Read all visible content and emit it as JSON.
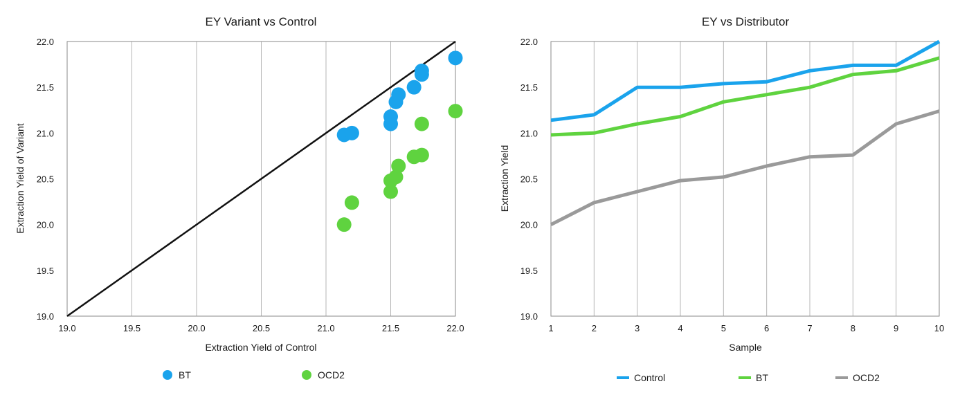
{
  "chart_data": [
    {
      "type": "scatter",
      "title": "EY Variant vs Control",
      "xlabel": "Extraction Yield of Control",
      "ylabel": "Extraction Yield  of Variant",
      "xlim": [
        19.0,
        22.0
      ],
      "ylim": [
        19.0,
        22.0
      ],
      "x_ticks": [
        "19.0",
        "19.5",
        "20.0",
        "20.5",
        "21.0",
        "21.5",
        "22.0"
      ],
      "y_ticks": [
        "19.0",
        "19.5",
        "20.0",
        "20.5",
        "21.0",
        "21.5",
        "22.0"
      ],
      "grid": "vertical",
      "legend_position": "bottom",
      "reference_line": {
        "from": [
          19.0,
          19.0
        ],
        "to": [
          22.0,
          22.0
        ],
        "color": "#111111"
      },
      "series": [
        {
          "name": "BT",
          "color": "#1aa3ec",
          "points": [
            [
              21.14,
              20.98
            ],
            [
              21.2,
              21.0
            ],
            [
              21.5,
              21.1
            ],
            [
              21.5,
              21.18
            ],
            [
              21.54,
              21.34
            ],
            [
              21.56,
              21.42
            ],
            [
              21.68,
              21.5
            ],
            [
              21.74,
              21.64
            ],
            [
              21.74,
              21.68
            ],
            [
              22.0,
              21.82
            ]
          ]
        },
        {
          "name": "OCD2",
          "color": "#5fd33f",
          "points": [
            [
              21.14,
              20.0
            ],
            [
              21.2,
              20.24
            ],
            [
              21.5,
              20.36
            ],
            [
              21.5,
              20.48
            ],
            [
              21.54,
              20.52
            ],
            [
              21.56,
              20.64
            ],
            [
              21.68,
              20.74
            ],
            [
              21.74,
              20.76
            ],
            [
              21.74,
              21.1
            ],
            [
              22.0,
              21.24
            ]
          ]
        }
      ]
    },
    {
      "type": "line",
      "title": "EY vs Distributor",
      "xlabel": "Sample",
      "ylabel": "Extraction Yield",
      "categories": [
        "1",
        "2",
        "3",
        "4",
        "5",
        "6",
        "7",
        "8",
        "9",
        "10"
      ],
      "ylim": [
        19.0,
        22.0
      ],
      "y_ticks": [
        "19.0",
        "19.5",
        "20.0",
        "20.5",
        "21.0",
        "21.5",
        "22.0"
      ],
      "grid": "vertical",
      "legend_position": "bottom",
      "series": [
        {
          "name": "Control",
          "color": "#1aa3ec",
          "values": [
            21.14,
            21.2,
            21.5,
            21.5,
            21.54,
            21.56,
            21.68,
            21.74,
            21.74,
            22.0
          ]
        },
        {
          "name": "BT",
          "color": "#5fd33f",
          "values": [
            20.98,
            21.0,
            21.1,
            21.18,
            21.34,
            21.42,
            21.5,
            21.64,
            21.68,
            21.82
          ]
        },
        {
          "name": "OCD2",
          "color": "#9a9a9a",
          "values": [
            20.0,
            20.24,
            20.36,
            20.48,
            20.52,
            20.64,
            20.74,
            20.76,
            21.1,
            21.24
          ]
        }
      ]
    }
  ]
}
